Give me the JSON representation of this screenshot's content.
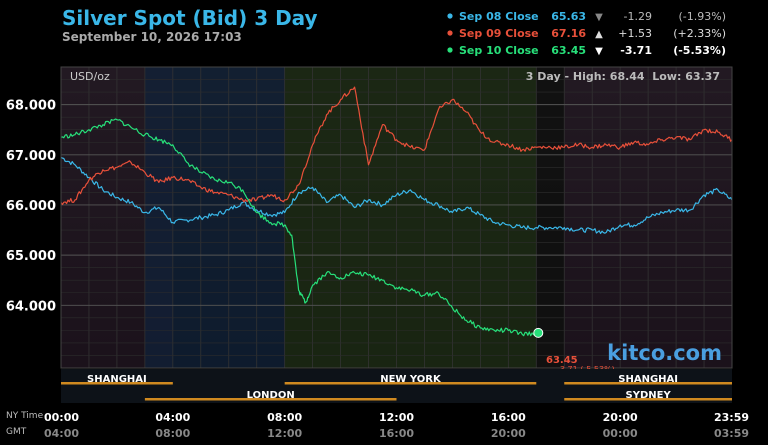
{
  "header": {
    "title": "Silver Spot (Bid) 3 Day",
    "date": "September 10, 2026 17:03"
  },
  "legend": [
    {
      "label": "Sep 08 Close",
      "price": "65.63",
      "arrow": "▼",
      "change": "-1.29",
      "pct": "(-1.93%)",
      "color": "#3ab7e8",
      "arrow_color": "#888888",
      "text_color": "#bbbbbb"
    },
    {
      "label": "Sep 09 Close",
      "price": "67.16",
      "arrow": "▲",
      "change": "+1.53",
      "pct": "(+2.33%)",
      "color": "#e8503a",
      "arrow_color": "#dddddd",
      "text_color": "#dddddd"
    },
    {
      "label": "Sep 10 Close",
      "price": "63.45",
      "arrow": "▼",
      "change": "-3.71",
      "pct": "(-5.53%)",
      "color": "#27e07a",
      "arrow_color": "#ffffff",
      "text_color": "#ffffff"
    }
  ],
  "plot": {
    "unit": "USD/oz",
    "range_label": "3 Day - High: 68.44  Low: 63.37",
    "watermark": "kitco.com",
    "current_price": "63.45",
    "current_change": "-3.71 (-5.53%)"
  },
  "sessions": {
    "top": [
      {
        "name": "SHANGHAI",
        "start": 0,
        "end": 4
      },
      {
        "name": "NEW YORK",
        "start": 8,
        "end": 17
      },
      {
        "name": "SHANGHAI",
        "start": 18,
        "end": 24
      }
    ],
    "bottom": [
      {
        "name": "LONDON",
        "start": 3,
        "end": 12
      },
      {
        "name": "SYDNEY",
        "start": 18,
        "end": 24
      }
    ]
  },
  "time_axis": {
    "row1_label": "NY Time",
    "row2_label": "GMT",
    "ny": [
      "00:00",
      "04:00",
      "08:00",
      "12:00",
      "16:00",
      "20:00",
      "23:59"
    ],
    "gmt": [
      "04:00",
      "08:00",
      "12:00",
      "16:00",
      "20:00",
      "00:00",
      "03:59"
    ]
  },
  "chart_data": {
    "type": "line",
    "title": "Silver Spot (Bid) 3 Day",
    "ylabel": "USD/oz",
    "x_unit": "NY time (hours)",
    "xlim": [
      0,
      24
    ],
    "ylim": [
      62.75,
      68.75
    ],
    "yticks": [
      "64.000",
      "65.000",
      "66.000",
      "67.000",
      "68.000"
    ],
    "ytick_values": [
      64,
      65,
      66,
      67,
      68
    ],
    "grid": true,
    "series": [
      {
        "name": "Sep 08 Close",
        "color": "#3ab7e8",
        "x": [
          0,
          0.5,
          1,
          1.5,
          2,
          2.5,
          3,
          3.5,
          4,
          4.5,
          5,
          5.5,
          6,
          6.5,
          7,
          7.5,
          8,
          8.5,
          9,
          9.5,
          10,
          10.5,
          11,
          11.5,
          12,
          12.5,
          13,
          13.5,
          14,
          14.5,
          15,
          15.5,
          16,
          16.5,
          17,
          17.5,
          18,
          18.5,
          19,
          19.5,
          20,
          20.5,
          21,
          21.5,
          22,
          22.5,
          23,
          23.5,
          24
        ],
        "y": [
          66.95,
          66.8,
          66.55,
          66.3,
          66.15,
          66.05,
          65.85,
          65.95,
          65.65,
          65.7,
          65.75,
          65.8,
          65.9,
          66.05,
          65.9,
          65.8,
          65.85,
          66.25,
          66.35,
          66.05,
          66.2,
          65.95,
          66.1,
          66.0,
          66.2,
          66.3,
          66.1,
          66.0,
          65.85,
          65.95,
          65.8,
          65.65,
          65.6,
          65.55,
          65.55,
          65.55,
          65.55,
          65.5,
          65.5,
          65.45,
          65.6,
          65.6,
          65.75,
          65.85,
          65.9,
          65.9,
          66.2,
          66.3,
          66.1
        ]
      },
      {
        "name": "Sep 09 Close",
        "color": "#e8503a",
        "x": [
          0,
          0.5,
          1,
          1.5,
          2,
          2.5,
          3,
          3.5,
          4,
          4.5,
          5,
          5.5,
          6,
          6.5,
          7,
          7.5,
          8,
          8.5,
          9,
          9.5,
          10,
          10.5,
          11,
          11.5,
          12,
          12.5,
          13,
          13.5,
          14,
          14.5,
          15,
          15.5,
          16,
          16.5,
          17,
          17.5,
          18,
          18.5,
          19,
          19.5,
          20,
          20.5,
          21,
          21.5,
          22,
          22.5,
          23,
          23.5,
          24
        ],
        "y": [
          66.05,
          66.1,
          66.5,
          66.7,
          66.75,
          66.85,
          66.65,
          66.45,
          66.55,
          66.5,
          66.35,
          66.25,
          66.2,
          66.1,
          66.1,
          66.2,
          66.1,
          66.4,
          67.2,
          67.8,
          68.1,
          68.35,
          66.8,
          67.6,
          67.3,
          67.15,
          67.1,
          67.9,
          68.1,
          67.85,
          67.45,
          67.25,
          67.2,
          67.1,
          67.15,
          67.15,
          67.15,
          67.2,
          67.15,
          67.2,
          67.15,
          67.25,
          67.2,
          67.3,
          67.35,
          67.3,
          67.5,
          67.45,
          67.3
        ]
      },
      {
        "name": "Sep 10 Close",
        "color": "#27e07a",
        "x": [
          0,
          0.5,
          1,
          1.5,
          2,
          2.5,
          3,
          3.5,
          4,
          4.5,
          5,
          5.5,
          6,
          6.5,
          7,
          7.5,
          8,
          8.25,
          8.5,
          8.75,
          9,
          9.5,
          10,
          10.5,
          11,
          11.5,
          12,
          12.5,
          13,
          13.5,
          14,
          14.5,
          15,
          15.5,
          16,
          16.5,
          17
        ],
        "y": [
          67.35,
          67.4,
          67.5,
          67.6,
          67.7,
          67.55,
          67.4,
          67.3,
          67.2,
          66.85,
          66.65,
          66.5,
          66.45,
          66.3,
          65.85,
          65.65,
          65.6,
          65.4,
          64.3,
          64.05,
          64.4,
          64.65,
          64.55,
          64.65,
          64.6,
          64.5,
          64.35,
          64.3,
          64.2,
          64.25,
          63.95,
          63.7,
          63.55,
          63.5,
          63.5,
          63.42,
          63.45
        ]
      }
    ]
  }
}
